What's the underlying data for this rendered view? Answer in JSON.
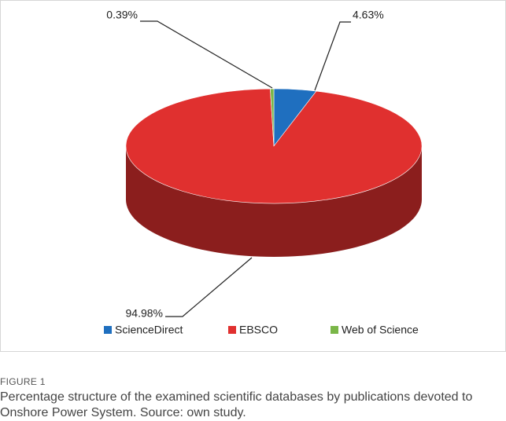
{
  "chart_data": {
    "type": "pie",
    "categories": [
      "ScienceDirect",
      "EBSCO",
      "Web of Science"
    ],
    "values": [
      4.63,
      94.98,
      0.39
    ],
    "value_labels": [
      "4.63%",
      "94.98%",
      "0.39%"
    ],
    "colors": [
      "#1f6fbf",
      "#e0302f",
      "#7ab648"
    ]
  },
  "figure": {
    "label": "FIGURE 1",
    "caption": "Percentage structure of the examined scientific databases by publications devoted to Onshore Power System. Source: own study."
  }
}
